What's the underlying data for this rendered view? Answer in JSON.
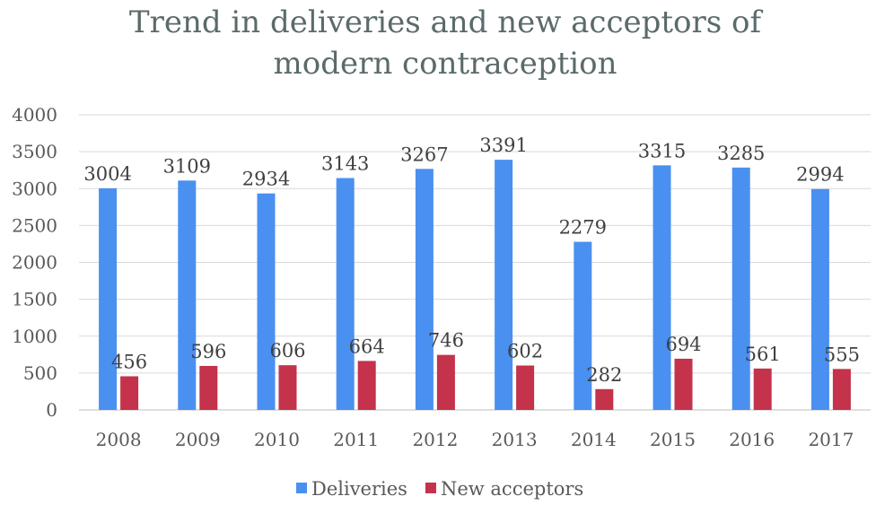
{
  "chart_data": {
    "type": "bar",
    "title": [
      "Trend in deliveries and new acceptors of",
      "modern contraception"
    ],
    "categories": [
      "2008",
      "2009",
      "2010",
      "2011",
      "2012",
      "2013",
      "2014",
      "2015",
      "2016",
      "2017"
    ],
    "series": [
      {
        "name": "Deliveries",
        "color": "#4a90f0",
        "values": [
          3004,
          3109,
          2934,
          3143,
          3267,
          3391,
          2279,
          3315,
          3285,
          2994
        ]
      },
      {
        "name": "New acceptors",
        "color": "#c4324b",
        "values": [
          456,
          596,
          606,
          664,
          746,
          602,
          282,
          694,
          561,
          555
        ]
      }
    ],
    "ylim": [
      0,
      4000
    ],
    "yticks": [
      0,
      500,
      1000,
      1500,
      2000,
      2500,
      3000,
      3500,
      4000
    ],
    "grid": true,
    "legend": "bottom"
  }
}
